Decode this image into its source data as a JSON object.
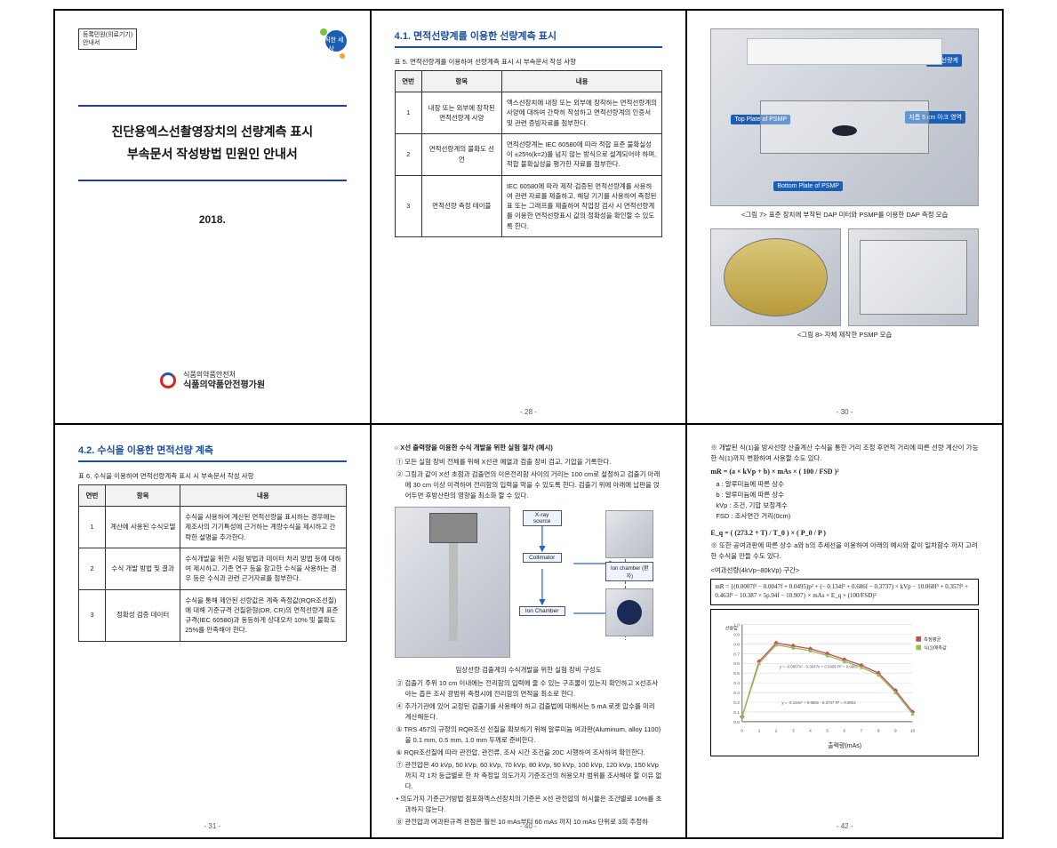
{
  "cover": {
    "box_l1": "등록민원(의료기기)",
    "box_l2": "안내서",
    "title_l1": "진단용엑스선촬영장치의 선량계측 표시",
    "title_l2": "부속문서 작성방법 민원인 안내서",
    "year": "2018.",
    "org_sub": "식품의약품안전처",
    "org_main": "식품의약품안전평가원",
    "dot_txt": "정직한 세상"
  },
  "p2": {
    "heading": "4.1. 면적선량계를 이용한 선량계측 표시",
    "caption": "표 5. 면적선량계를 이용하여 선량계측 표시 시 부속문서 작성 사항",
    "cols": [
      "연번",
      "항목",
      "내용"
    ],
    "rows": [
      {
        "n": "1",
        "k": "내장 또는 외부에 장착된 면적선량계 사양",
        "v": "엑스선장치에 내장 또는 외부에 장착하는 면적선량계의 사양에 대하여 간략히 작성하고 면적선량계의 인증서 및 관련 증빙자료를 첨부한다."
      },
      {
        "n": "2",
        "k": "면적선량계의 불확도 선언",
        "v": "면적선량계는 IEC 60580에 따라 적합 표준 불확실성이 ±25%(k=2)를 넘지 않는 방식으로 설계되어야 하며, 적합 불확실성을 평가한 자료를 첨부한다."
      },
      {
        "n": "3",
        "k": "면적선량 측정 테이블",
        "v": "IEC 60580에 따라 제작·검증된 면적선량계를 사용하여 관련 자료를 제출하고, 해당 기기를 사용하여 측정된 표 또는 그래프를 제출하여 작업장 검사 시 면적선량계를 이용한 면적선량표시 값의 정확성을 확인할 수 있도록 한다."
      }
    ],
    "page": "- 28 -"
  },
  "p3": {
    "labels": {
      "a": "면적선량계",
      "b": "Top Plate of PSMP",
      "c": "지름 5 cm 아크 영역",
      "d": "Bottom Plate of PSMP"
    },
    "fig1": "<그림 7> 표준 장치에 부착된 DAP 미터와 PSMP를 이용한 DAP 측정 모습",
    "fig2": "<그림 8> 자체 제작한 PSMP 모습",
    "page": "- 30 -"
  },
  "p4": {
    "heading": "4.2. 수식을 이용한 면적선량 계측",
    "caption": "표 6. 수식을 이용하여 면적선량계측 표시 시 부속문서 작성 사항",
    "cols": [
      "연번",
      "항목",
      "내용"
    ],
    "rows": [
      {
        "n": "1",
        "k": "계산에 사용된 수식모델",
        "v": "수식을 사용하여 계산된 면적선량을 표시하는 경우에는 제조사의 기기특성에 근거하는 계량수식을 제시하고 간략한 설명을 추가한다."
      },
      {
        "n": "2",
        "k": "수식 개발 방법 및 결과",
        "v": "수식개발을 위한 시험 방법과 데이터 처리 방법 등에 대하여 제시하고, 기존 연구 등을 참고한 수식을 사용하는 경우 등은 수식과 관련 근거자료를 첨부한다."
      },
      {
        "n": "3",
        "k": "정확성 검증 데이터",
        "v": "수식을 통해 제안된 선량값은 계측 측정값(RQR조선질)에 대해 기준규격 건질환형(DR, CR)의 면적선량계 표준규격(IEC 60580)과 동등하게 상대오차 10% 및 불확도 25%를 만족해야 한다."
      }
    ],
    "page": "- 31 -"
  },
  "p5": {
    "intro": "○ X선 출력량을 이용한 수식 개발을 위한 실험 절차 (예시)",
    "pre": [
      "① 모든 실험 장비 전체를 위해 X선관 예열과 검출 장비 검교, 기압을 기록한다.",
      "② 그림과 같이 X선 초점과 검출면의 이온전리함 사이의 거리는 100 cm로 설정하고 검출기 아래에 30 cm 이상 이격하여 전리함의 입력을 막을 수 있도록 한다. 검출기 위에 아래에 납판을 얹어두면 후방산란의 영향을 최소화 할 수 있다."
    ],
    "diag_caption": "임상선량 검출계의 수식개발을 위한 실험 장비 구성도",
    "diag_nodes": {
      "src": "X-ray source",
      "col": "Collimator",
      "ion": "Ion Chamber",
      "ion2": "Ion chamber (환자)"
    },
    "post": [
      "③ 검출기 주위 10 cm 이내에는 전리함의 입력에 줄 수 있는 구조물이 있는지 확인하고 X선조사야는 좁은 조사 광범위 측정시에 전리함의 면적을 최소로 한다.",
      "④ 추가기관에 있어 교정된 검출기를 사용해야 하고 검출법에 대해서는 5 mA 로켓 압수를 미리 계산해둔다.",
      "⑤ TRS 457의 규정의 RQR조선 선질을 확보하기 위해 알루미늄 여과판(Aluminum, alloy 1100)을 0.1 mm, 0.5 mm, 1.0 mm 두께로 준비한다.",
      "⑥ RQR조선질에 따라 관전압, 관전류, 조사 시간 조건을 20C 시행하여 조사하여 확인한다.",
      "⑦ 관전압은 40 kVp, 50 kVp, 60 kVp, 70 kVp, 80 kVp, 90 kVp, 100 kVp, 120 kVp, 150 kVp 까지 각 1차 등급별로 한 차 측정일 의도가지 기준조건의 허용오차 범위를 조사해야 할 이유 없다.",
      "• 의도가지 기준근거방법 점포화엑스선장치의 기준은 X선 관전압의 허시율은 조건별로 10%를 초과하지 않는다.",
      "⑧ 관전압과 여과판규격 관점은 훨씬 10 mAs부터 60 mAs 까지 10 mAs 단위로 3회 추정하"
    ],
    "page": "- 40 -"
  },
  "p6": {
    "intro": "※ 개발된 식(1)을 방사선량 산출계산 수식을 통한 거리 조정 후면적 거리에 따른 선량 계산이 가능한 식(1)까지 변환하여 사용할 수도 있다.",
    "eq1": "mR = (a × kVp + b) × mAs × ( 100 / FSD )²",
    "defs": [
      "a  : 알루미늄에 따른 상수",
      "b  : 알루미늄에 따른 상수",
      "kVp : 조건, 기압 보정계수",
      "FSD : 조사면간 거리(0cm)"
    ],
    "eq2": "E_q = ( (273.2 + T) / T_0 ) × ( P_0 / P )",
    "note": "※ 또한 공여과판에 따른 상수 a와 b의 추세선을 이용하여 아래의 예시와 같이 일차함수 까지 고려한 수식을 만들 수도 있다.",
    "eqbox_caption": "<여과선량(4kVp~80kVp) 구간>",
    "eqbox": "mR = {(0.0007f² − 0.0047f + 0.0495)p² + (− 0.134f² + 0.686f − 0.3737) × kVp − 10.068f³ + 0.357f² + 0.463f² − 10.387 × 5p.94f − 10.907} × mAs × E_q × (100/FSD)²",
    "chart": {
      "type": "line",
      "title": "출력량(mAs)",
      "ylabel": "선량값",
      "series": [
        {
          "name": "측정평균",
          "color": "#c0504d",
          "marker": "diamond",
          "values": [
            0.05,
            0.62,
            0.81,
            0.78,
            0.75,
            0.7,
            0.64,
            0.58,
            0.5,
            0.32,
            0.1
          ]
        },
        {
          "name": "식(1)예측값",
          "color": "#9bbb59",
          "marker": "triangle",
          "values": [
            0.05,
            0.6,
            0.79,
            0.76,
            0.73,
            0.68,
            0.62,
            0.56,
            0.48,
            0.3,
            0.08
          ]
        }
      ],
      "x": [
        0,
        1,
        2,
        3,
        4,
        5,
        6,
        7,
        8,
        9,
        10
      ],
      "ylim": [
        0,
        1
      ],
      "ytick_step": 0.1,
      "grid_color": "#d9d9d9",
      "background_color": "#ffffff",
      "trend1": "y = -0.0007x² - 0.0047x + 0.0495  R² = 0.9981",
      "trend2": "y = -0.134x² + 0.686x - 0.3737  R² = 0.9802"
    },
    "page": "- 42 -"
  }
}
